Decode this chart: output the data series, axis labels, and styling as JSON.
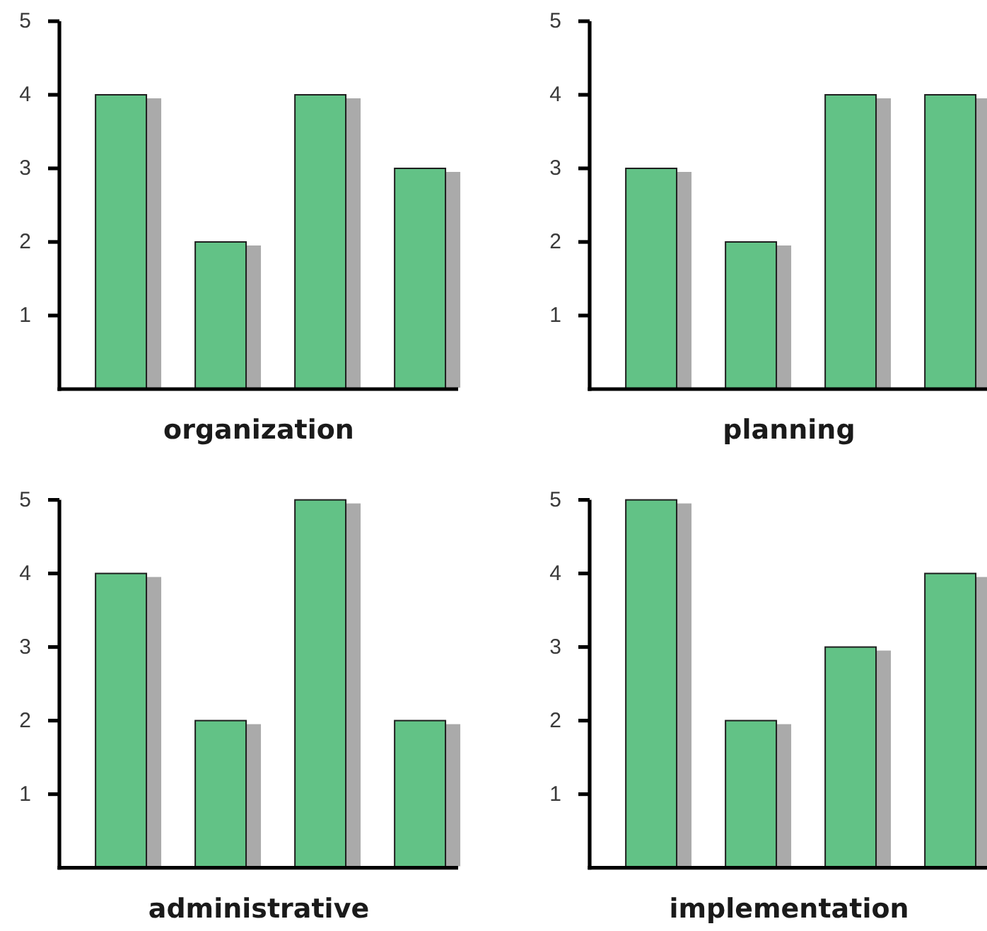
{
  "chart_data": [
    {
      "type": "bar",
      "categories": [
        null,
        null,
        null,
        null
      ],
      "values": [
        4,
        2,
        4,
        3
      ],
      "color": "#62c286",
      "ylim": [
        0,
        5
      ],
      "yticks": [
        1,
        2,
        3,
        4,
        5
      ],
      "xlabel": "organization"
    },
    {
      "type": "bar",
      "categories": [
        null,
        null,
        null,
        null
      ],
      "values": [
        3,
        2,
        4,
        4
      ],
      "color": "#62c286",
      "ylim": [
        0,
        5
      ],
      "yticks": [
        1,
        2,
        3,
        4,
        5
      ],
      "xlabel": "planning"
    },
    {
      "type": "bar",
      "categories": [
        null,
        null,
        null,
        null
      ],
      "values": [
        4,
        2,
        5,
        2
      ],
      "color": "#62c286",
      "ylim": [
        0,
        5
      ],
      "yticks": [
        1,
        2,
        3,
        4,
        5
      ],
      "xlabel": "administrative"
    },
    {
      "type": "bar",
      "categories": [
        null,
        null,
        null,
        null
      ],
      "values": [
        5,
        2,
        3,
        4
      ],
      "color": "#62c286",
      "ylim": [
        0,
        5
      ],
      "yticks": [
        1,
        2,
        3,
        4,
        5
      ],
      "xlabel": "implementation"
    }
  ]
}
